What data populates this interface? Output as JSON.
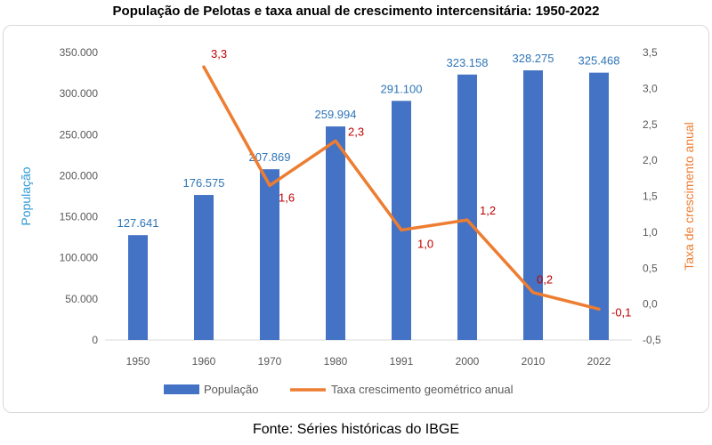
{
  "title": "População de Pelotas e taxa anual de crescimento intercensitária: 1950-2022",
  "source": "Fonte: Séries históricas do IBGE",
  "colors": {
    "bar": "#4472C4",
    "line": "#ED7D31",
    "bar_label": "#2E75B6",
    "line_label": "#C00000",
    "axis_left": "#2E9BD6",
    "axis_right": "#ED7D31"
  },
  "chart_data": {
    "type": "bar",
    "title": "População de Pelotas e taxa anual de crescimento intercensitária: 1950-2022",
    "categories": [
      "1950",
      "1960",
      "1970",
      "1980",
      "1991",
      "2000",
      "2010",
      "2022"
    ],
    "series": [
      {
        "name": "População",
        "type": "bar",
        "axis": "left",
        "values": [
          127641,
          176575,
          207869,
          259994,
          291100,
          323158,
          328275,
          325468
        ],
        "labels": [
          "127.641",
          "176.575",
          "207.869",
          "259.994",
          "291.100",
          "323.158",
          "328.275",
          "325.468"
        ]
      },
      {
        "name": "Taxa crescimento geométrico anual",
        "type": "line",
        "axis": "right",
        "values": [
          null,
          3.3,
          1.65,
          2.27,
          1.03,
          1.17,
          0.16,
          -0.07
        ],
        "labels": [
          "",
          "3,3",
          "1,6",
          "2,3",
          "1,0",
          "1,2",
          "0,2",
          "-0,1"
        ]
      }
    ],
    "ylabel": "População",
    "y2label": "Taxa de crescimento anual",
    "ylim": [
      0,
      350000
    ],
    "y2lim": [
      -0.5,
      3.5
    ],
    "yticks": [
      "0",
      "50.000",
      "100.000",
      "150.000",
      "200.000",
      "250.000",
      "300.000",
      "350.000"
    ],
    "y2ticks": [
      "-0,5",
      "0,0",
      "0,5",
      "1,0",
      "1,5",
      "2,0",
      "2,5",
      "3,0",
      "3,5"
    ],
    "grid": false,
    "legend": "bottom"
  }
}
